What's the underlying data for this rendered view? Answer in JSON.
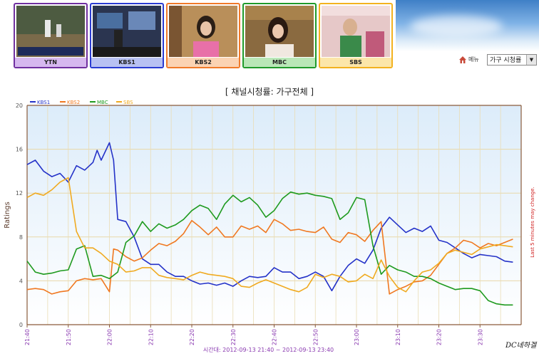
{
  "channels": [
    {
      "name": "YTN",
      "color": "#7030a0",
      "fill": "#d6b8ef"
    },
    {
      "name": "KBS1",
      "color": "#2a3bd2",
      "fill": "#b8c1f3"
    },
    {
      "name": "KBS2",
      "color": "#f07a2a",
      "fill": "#fbd3b3"
    },
    {
      "name": "MBC",
      "color": "#1f9a2a",
      "fill": "#b9e7b7"
    },
    {
      "name": "SBS",
      "color": "#f3b21f",
      "fill": "#fce6a9"
    }
  ],
  "menu": {
    "label": "메뉴",
    "icon": "home-icon"
  },
  "selector": {
    "value": "가구 시청률"
  },
  "chart_data": {
    "type": "line",
    "title": "[ 채널시청률: 가구전체 ]",
    "ylabel": "Ratings",
    "y2label": "Last 5 minutes may change.",
    "xlabel": "시간대: 2012-09-13 21:40 ~ 2012-09-13 23:40",
    "ylim": [
      0,
      20
    ],
    "yticks": [
      0,
      4,
      8,
      12,
      16,
      20
    ],
    "xlim": [
      0,
      120
    ],
    "xticks": [
      {
        "t": 0,
        "label": "21:40"
      },
      {
        "t": 10,
        "label": "21:50"
      },
      {
        "t": 20,
        "label": "22:00"
      },
      {
        "t": 30,
        "label": "22:10"
      },
      {
        "t": 40,
        "label": "22:20"
      },
      {
        "t": 50,
        "label": "22:30"
      },
      {
        "t": 60,
        "label": "22:40"
      },
      {
        "t": 70,
        "label": "22:50"
      },
      {
        "t": 80,
        "label": "23:00"
      },
      {
        "t": 90,
        "label": "23:10"
      },
      {
        "t": 100,
        "label": "23:20"
      },
      {
        "t": 110,
        "label": "23:30"
      }
    ],
    "grid": true,
    "legend_position": "top-left",
    "series": [
      {
        "name": "KBS1",
        "color": "#2432c8",
        "points": [
          [
            0,
            14.6
          ],
          [
            2,
            15
          ],
          [
            4,
            14
          ],
          [
            6,
            13.5
          ],
          [
            8,
            13.8
          ],
          [
            10,
            13
          ],
          [
            12,
            14.5
          ],
          [
            14,
            14.1
          ],
          [
            16,
            14.8
          ],
          [
            17,
            15.9
          ],
          [
            18,
            15
          ],
          [
            20,
            16.6
          ],
          [
            21,
            15
          ],
          [
            22,
            9.6
          ],
          [
            24,
            9.4
          ],
          [
            26,
            8
          ],
          [
            28,
            6
          ],
          [
            30,
            5.5
          ],
          [
            32,
            5.5
          ],
          [
            34,
            4.8
          ],
          [
            36,
            4.4
          ],
          [
            38,
            4.4
          ],
          [
            40,
            4
          ],
          [
            42,
            3.7
          ],
          [
            44,
            3.8
          ],
          [
            46,
            3.6
          ],
          [
            48,
            3.8
          ],
          [
            50,
            3.5
          ],
          [
            52,
            4
          ],
          [
            54,
            4.4
          ],
          [
            56,
            4.3
          ],
          [
            58,
            4.4
          ],
          [
            60,
            5.2
          ],
          [
            62,
            4.8
          ],
          [
            64,
            4.8
          ],
          [
            66,
            4.2
          ],
          [
            68,
            4.4
          ],
          [
            70,
            4.8
          ],
          [
            72,
            4.4
          ],
          [
            74,
            3.1
          ],
          [
            76,
            4.4
          ],
          [
            78,
            5.4
          ],
          [
            80,
            6
          ],
          [
            82,
            5.6
          ],
          [
            84,
            6.8
          ],
          [
            86,
            8.8
          ],
          [
            88,
            9.8
          ],
          [
            90,
            9.1
          ],
          [
            92,
            8.4
          ],
          [
            94,
            8.8
          ],
          [
            96,
            8.5
          ],
          [
            98,
            9
          ],
          [
            100,
            7.7
          ],
          [
            102,
            7.5
          ],
          [
            104,
            7
          ],
          [
            106,
            6.5
          ],
          [
            108,
            6.1
          ],
          [
            110,
            6.4
          ],
          [
            112,
            6.3
          ],
          [
            114,
            6.2
          ],
          [
            116,
            5.8
          ],
          [
            118,
            5.7
          ]
        ]
      },
      {
        "name": "KBS2",
        "color": "#f07820",
        "points": [
          [
            0,
            3.2
          ],
          [
            2,
            3.3
          ],
          [
            4,
            3.2
          ],
          [
            6,
            2.8
          ],
          [
            8,
            3
          ],
          [
            10,
            3.1
          ],
          [
            12,
            4
          ],
          [
            14,
            4.2
          ],
          [
            16,
            4.1
          ],
          [
            18,
            4.2
          ],
          [
            20,
            3
          ],
          [
            21,
            6.9
          ],
          [
            22,
            6.8
          ],
          [
            24,
            6.2
          ],
          [
            26,
            5.8
          ],
          [
            28,
            6.1
          ],
          [
            30,
            6.8
          ],
          [
            32,
            7.4
          ],
          [
            34,
            7.2
          ],
          [
            36,
            7.6
          ],
          [
            38,
            8.3
          ],
          [
            40,
            9.5
          ],
          [
            42,
            8.9
          ],
          [
            44,
            8.2
          ],
          [
            46,
            8.9
          ],
          [
            48,
            8
          ],
          [
            50,
            8
          ],
          [
            52,
            9
          ],
          [
            54,
            8.7
          ],
          [
            56,
            9
          ],
          [
            58,
            8.4
          ],
          [
            60,
            9.6
          ],
          [
            62,
            9.2
          ],
          [
            64,
            8.6
          ],
          [
            66,
            8.7
          ],
          [
            68,
            8.5
          ],
          [
            70,
            8.4
          ],
          [
            72,
            8.9
          ],
          [
            74,
            7.8
          ],
          [
            76,
            7.5
          ],
          [
            78,
            8.4
          ],
          [
            80,
            8.2
          ],
          [
            82,
            7.6
          ],
          [
            84,
            8.6
          ],
          [
            86,
            9.4
          ],
          [
            88,
            2.8
          ],
          [
            90,
            3.2
          ],
          [
            92,
            3.5
          ],
          [
            94,
            3.9
          ],
          [
            96,
            4
          ],
          [
            98,
            4.5
          ],
          [
            100,
            5.5
          ],
          [
            102,
            6.5
          ],
          [
            104,
            7
          ],
          [
            106,
            7.7
          ],
          [
            108,
            7.5
          ],
          [
            110,
            7
          ],
          [
            112,
            7.4
          ],
          [
            114,
            7.2
          ],
          [
            116,
            7.5
          ],
          [
            118,
            7.8
          ]
        ]
      },
      {
        "name": "MBC",
        "color": "#1e9a1e",
        "points": [
          [
            0,
            5.8
          ],
          [
            2,
            4.8
          ],
          [
            4,
            4.6
          ],
          [
            6,
            4.7
          ],
          [
            8,
            4.9
          ],
          [
            10,
            5
          ],
          [
            12,
            6.9
          ],
          [
            14,
            7.2
          ],
          [
            16,
            4.4
          ],
          [
            18,
            4.5
          ],
          [
            20,
            4.2
          ],
          [
            22,
            4.8
          ],
          [
            24,
            7.5
          ],
          [
            26,
            8.1
          ],
          [
            28,
            9.4
          ],
          [
            30,
            8.5
          ],
          [
            32,
            9.2
          ],
          [
            34,
            8.8
          ],
          [
            36,
            9.1
          ],
          [
            38,
            9.6
          ],
          [
            40,
            10.4
          ],
          [
            42,
            10.9
          ],
          [
            44,
            10.6
          ],
          [
            46,
            9.6
          ],
          [
            48,
            11
          ],
          [
            50,
            11.8
          ],
          [
            52,
            11.2
          ],
          [
            54,
            11.6
          ],
          [
            56,
            10.9
          ],
          [
            58,
            9.8
          ],
          [
            60,
            10.4
          ],
          [
            62,
            11.5
          ],
          [
            64,
            12.1
          ],
          [
            66,
            11.9
          ],
          [
            68,
            12
          ],
          [
            70,
            11.8
          ],
          [
            72,
            11.7
          ],
          [
            74,
            11.5
          ],
          [
            76,
            9.6
          ],
          [
            78,
            10.2
          ],
          [
            80,
            11.6
          ],
          [
            82,
            11.4
          ],
          [
            84,
            7.2
          ],
          [
            86,
            4.6
          ],
          [
            88,
            5.4
          ],
          [
            90,
            5
          ],
          [
            92,
            4.8
          ],
          [
            94,
            4.4
          ],
          [
            96,
            4.4
          ],
          [
            98,
            4.2
          ],
          [
            100,
            3.8
          ],
          [
            102,
            3.5
          ],
          [
            104,
            3.2
          ],
          [
            106,
            3.3
          ],
          [
            108,
            3.3
          ],
          [
            110,
            3.1
          ],
          [
            112,
            2.2
          ],
          [
            114,
            1.9
          ],
          [
            116,
            1.8
          ],
          [
            118,
            1.8
          ]
        ]
      },
      {
        "name": "SBS",
        "color": "#f0aa20",
        "points": [
          [
            0,
            11.6
          ],
          [
            2,
            12
          ],
          [
            4,
            11.8
          ],
          [
            6,
            12.3
          ],
          [
            8,
            13
          ],
          [
            10,
            13.4
          ],
          [
            12,
            8.5
          ],
          [
            14,
            7
          ],
          [
            16,
            7
          ],
          [
            18,
            6.5
          ],
          [
            20,
            5.8
          ],
          [
            22,
            5.5
          ],
          [
            24,
            4.8
          ],
          [
            26,
            4.9
          ],
          [
            28,
            5.2
          ],
          [
            30,
            5.2
          ],
          [
            32,
            4.5
          ],
          [
            34,
            4.3
          ],
          [
            36,
            4.2
          ],
          [
            38,
            4.1
          ],
          [
            40,
            4.5
          ],
          [
            42,
            4.8
          ],
          [
            44,
            4.6
          ],
          [
            46,
            4.5
          ],
          [
            48,
            4.4
          ],
          [
            50,
            4.2
          ],
          [
            52,
            3.5
          ],
          [
            54,
            3.4
          ],
          [
            56,
            3.8
          ],
          [
            58,
            4.1
          ],
          [
            60,
            3.8
          ],
          [
            62,
            3.5
          ],
          [
            64,
            3.2
          ],
          [
            66,
            3
          ],
          [
            68,
            3.4
          ],
          [
            70,
            4.6
          ],
          [
            72,
            4.3
          ],
          [
            74,
            4.6
          ],
          [
            76,
            4.4
          ],
          [
            78,
            3.9
          ],
          [
            80,
            4
          ],
          [
            82,
            4.6
          ],
          [
            84,
            4.2
          ],
          [
            86,
            5.9
          ],
          [
            88,
            4.4
          ],
          [
            90,
            3.4
          ],
          [
            92,
            3
          ],
          [
            94,
            4
          ],
          [
            96,
            4.8
          ],
          [
            98,
            5
          ],
          [
            100,
            5.6
          ],
          [
            102,
            6.5
          ],
          [
            104,
            6.8
          ],
          [
            106,
            6.6
          ],
          [
            108,
            6.4
          ],
          [
            110,
            6.9
          ],
          [
            112,
            7.1
          ],
          [
            114,
            7.3
          ],
          [
            116,
            7.2
          ],
          [
            118,
            7.1
          ]
        ]
      }
    ]
  }
}
